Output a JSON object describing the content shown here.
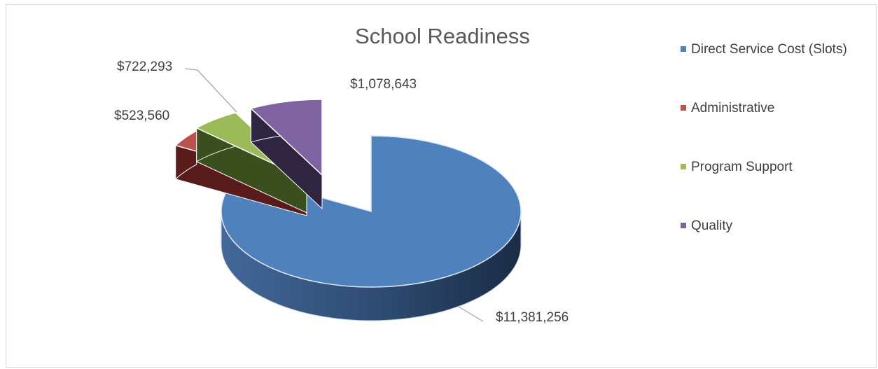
{
  "chart_data": {
    "type": "pie",
    "title": "School Readiness",
    "categories": [
      "Direct Service Cost (Slots)",
      "Administrative",
      "Program Support",
      "Quality"
    ],
    "values": [
      11381256,
      523560,
      722293,
      1078643
    ],
    "data_labels": [
      "$11,381,256",
      "$523,560",
      "$722,293",
      "$1,078,643"
    ],
    "colors": [
      "#4f81bd",
      "#c0504d",
      "#9bbb59",
      "#8064a2"
    ],
    "exploded": [
      false,
      true,
      true,
      true
    ],
    "legend_position": "right",
    "style": "3d-exploded"
  }
}
